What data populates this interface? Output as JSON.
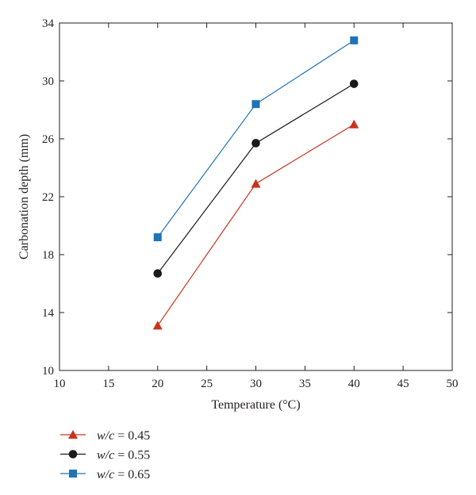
{
  "chart_data": {
    "type": "line",
    "xlabel": "Temperature (°C)",
    "ylabel": "Carbonation depth (mm)",
    "xlim": [
      10,
      50
    ],
    "ylim": [
      10,
      34
    ],
    "xticks": [
      10,
      15,
      20,
      25,
      30,
      35,
      40,
      45,
      50
    ],
    "yticks": [
      10,
      14,
      18,
      22,
      26,
      30,
      34
    ],
    "grid": false,
    "legend_position": "bottom-left, below plot",
    "x": [
      20,
      30,
      40
    ],
    "series": [
      {
        "name_italic": "w/c",
        "name_rest": " = 0.45",
        "marker": "triangle",
        "color": "#c8341c",
        "values": [
          13.1,
          22.9,
          27.0
        ]
      },
      {
        "name_italic": "w/c",
        "name_rest": " = 0.55",
        "marker": "circle",
        "color": "#1a1a1a",
        "values": [
          16.7,
          25.7,
          29.8
        ]
      },
      {
        "name_italic": "w/c",
        "name_rest": " = 0.65",
        "marker": "square",
        "color": "#1f73b7",
        "values": [
          19.2,
          28.4,
          32.8
        ]
      }
    ]
  }
}
